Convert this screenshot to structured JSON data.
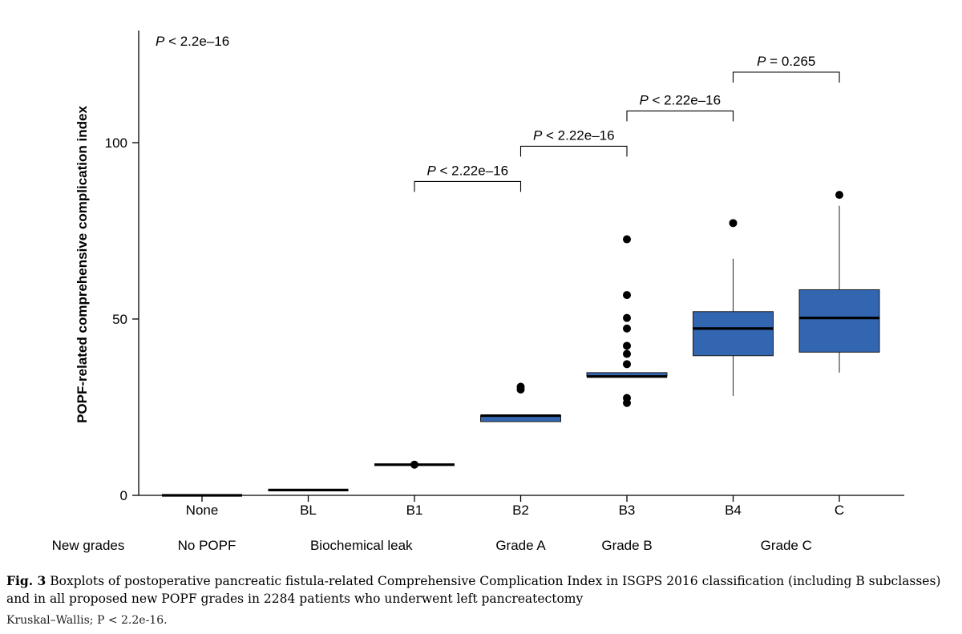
{
  "chart_data": {
    "type": "boxplot",
    "ylabel": "POPF-related comprehensive complication index",
    "ylim": [
      0,
      128
    ],
    "yticks": [
      0,
      50,
      100
    ],
    "overall_test": {
      "label": "P",
      "text": "< 2.2e–16"
    },
    "categories": [
      "None",
      "BL",
      "B1",
      "B2",
      "B3",
      "B4",
      "C"
    ],
    "boxes": [
      {
        "category": "None",
        "q1": 0,
        "median": 0,
        "q3": 0,
        "whisker_low": 0,
        "whisker_high": 0,
        "outliers": []
      },
      {
        "category": "BL",
        "q1": 1.5,
        "median": 1.5,
        "q3": 1.5,
        "whisker_low": 1.5,
        "whisker_high": 1.5,
        "outliers": []
      },
      {
        "category": "B1",
        "q1": 8.7,
        "median": 8.7,
        "q3": 8.7,
        "whisker_low": 8.7,
        "whisker_high": 8.7,
        "outliers": [
          8.7
        ]
      },
      {
        "category": "B2",
        "q1": 20.9,
        "median": 22.6,
        "q3": 22.6,
        "whisker_low": 20.9,
        "whisker_high": 22.6,
        "outliers": [
          30.0,
          30.8
        ]
      },
      {
        "category": "B3",
        "q1": 33.7,
        "median": 33.7,
        "q3": 34.8,
        "whisker_low": 33.7,
        "whisker_high": 34.8,
        "outliers": [
          26.2,
          27.6,
          37.2,
          40.1,
          42.4,
          47.3,
          50.3,
          56.8,
          72.6
        ]
      },
      {
        "category": "B4",
        "q1": 39.6,
        "median": 47.3,
        "q3": 52.1,
        "whisker_low": 28.2,
        "whisker_high": 67.1,
        "outliers": [
          77.2
        ]
      },
      {
        "category": "C",
        "q1": 40.6,
        "median": 50.3,
        "q3": 58.3,
        "whisker_low": 34.8,
        "whisker_high": 82.1,
        "outliers": [
          85.2
        ]
      }
    ],
    "comparisons": [
      {
        "from": "B1",
        "to": "B2",
        "y": 89,
        "label": "P",
        "text": "< 2.22e–16"
      },
      {
        "from": "B2",
        "to": "B3",
        "y": 99,
        "label": "P",
        "text": "< 2.22e–16"
      },
      {
        "from": "B3",
        "to": "B4",
        "y": 109,
        "label": "P",
        "text": "< 2.22e–16"
      },
      {
        "from": "B4",
        "to": "C",
        "y": 120,
        "label": "P",
        "text": "= 0.265"
      }
    ],
    "new_grades_label": "New grades",
    "new_grades": [
      {
        "label": "No POPF",
        "span": [
          "None",
          "None"
        ]
      },
      {
        "label": "Biochemical leak",
        "span": [
          "BL",
          "B1"
        ]
      },
      {
        "label": "Grade A",
        "span": [
          "B2",
          "B2"
        ]
      },
      {
        "label": "Grade B",
        "span": [
          "B3",
          "B3"
        ]
      },
      {
        "label": "Grade C",
        "span": [
          "B4",
          "C"
        ]
      }
    ],
    "colors": {
      "box_fill": "#3366b0",
      "box_stroke": "#1a1a1a",
      "median": "#000000",
      "points": "#000000"
    }
  },
  "caption": {
    "label": "Fig. 3",
    "text": "Boxplots of postoperative pancreatic fistula-related Comprehensive Complication Index in ISGPS 2016 classification (including B subclasses) and in all proposed new POPF grades in 2284 patients who underwent left pancreatectomy"
  },
  "note": "Kruskal–Wallis; P < 2.2e-16."
}
